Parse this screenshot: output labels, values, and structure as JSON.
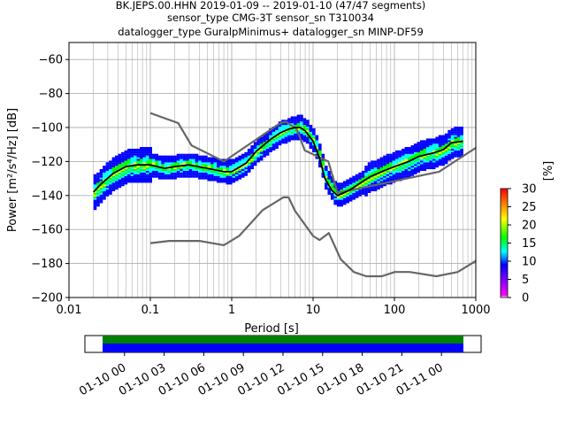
{
  "chart_data": {
    "type": "heatmap",
    "title_lines": [
      "BK.JEPS.00.HHN   2019-01-09 -- 2019-01-10  (47/47 segments)",
      "sensor_type CMG-3T sensor_sn T310034",
      "datalogger_type GuralpMinimus+ datalogger_sn MINP-DF59"
    ],
    "xlabel": "Period [s]",
    "ylabel": "Power [m²/s⁴/Hz] [dB]",
    "xscale": "log",
    "xlim": [
      0.01,
      1000
    ],
    "ylim": [
      -200,
      -50
    ],
    "xticks": [
      "0.01",
      "0.1",
      "1",
      "10",
      "100",
      "1000"
    ],
    "yticks": [
      "−60",
      "−80",
      "−100",
      "−120",
      "−140",
      "−160",
      "−180",
      "−200"
    ],
    "ytick_values": [
      -60,
      -80,
      -100,
      -120,
      -140,
      -160,
      -180,
      -200
    ],
    "grid": true,
    "colorbar": {
      "label": "[%]",
      "ticks": [
        "0",
        "5",
        "10",
        "15",
        "20",
        "25",
        "30"
      ],
      "range": [
        0,
        30
      ]
    },
    "noise_model_high": {
      "period": [
        0.1,
        0.22,
        0.32,
        0.8,
        3.8,
        4.6,
        6.3,
        7.9,
        15.4,
        20,
        354.8,
        1000
      ],
      "power": [
        -91.5,
        -97.4,
        -110.5,
        -120,
        -98,
        -96.5,
        -101,
        -113.5,
        -120,
        -138.5,
        -126,
        -112
      ]
    },
    "noise_model_low": {
      "period": [
        0.1,
        0.17,
        0.4,
        0.8,
        1.24,
        2.4,
        4.3,
        5,
        6,
        10,
        12,
        15.6,
        21.9,
        31.6,
        45,
        70,
        101,
        154,
        328,
        600,
        1000
      ],
      "power": [
        -168,
        -166.7,
        -166.7,
        -169.2,
        -163.7,
        -148.6,
        -141.1,
        -141.1,
        -149,
        -163.8,
        -166.2,
        -162.1,
        -177.5,
        -185,
        -187.5,
        -187.5,
        -185,
        -185,
        -187.5,
        -185,
        -178.5
      ]
    },
    "mode_curve": {
      "period": [
        0.02,
        0.025,
        0.035,
        0.05,
        0.07,
        0.1,
        0.15,
        0.2,
        0.3,
        0.5,
        0.8,
        1.0,
        1.5,
        2,
        3,
        4,
        5,
        6,
        7,
        8,
        10,
        12,
        14,
        17,
        20,
        25,
        30,
        40,
        50,
        70,
        100,
        150,
        200,
        300,
        400,
        500,
        700
      ],
      "power": [
        -138,
        -133,
        -127,
        -123,
        -122,
        -122,
        -124,
        -123,
        -122,
        -124,
        -126,
        -126,
        -121,
        -114,
        -107,
        -103,
        -101,
        -100,
        -100,
        -102,
        -108,
        -118,
        -130,
        -137,
        -140,
        -138,
        -136,
        -132,
        -129,
        -126,
        -123,
        -120,
        -117,
        -115,
        -113,
        -109,
        -108
      ]
    },
    "colorbar_stops": [
      "#ffffff",
      "#ff00ff",
      "#0000ff",
      "#00ffff",
      "#00ff00",
      "#ffff00",
      "#ff8000",
      "#ff0000"
    ],
    "time_axis": {
      "labels": [
        "01-10 00",
        "01-10 03",
        "01-10 06",
        "01-10 09",
        "01-10 12",
        "01-10 15",
        "01-10 18",
        "01-10 21",
        "01-11 00"
      ],
      "coverage_hours": [
        0,
        24
      ],
      "xlim_hours": [
        -3,
        27
      ]
    }
  }
}
